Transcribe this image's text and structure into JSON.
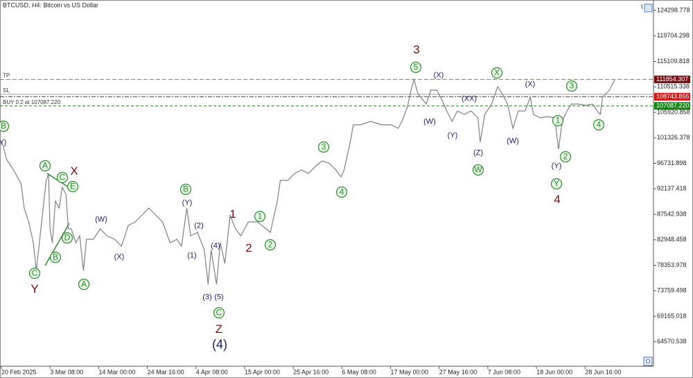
{
  "chart_data": {
    "type": "line",
    "title": "BTCUSD, H4:  Bitcoin vs US Dollar",
    "color": "#7f7f7f",
    "xlim": [
      0,
      858
    ],
    "ylim": [
      60163,
      125799
    ],
    "xticks": [
      {
        "value": 0,
        "label": "20 Feb 2025"
      },
      {
        "value": 64,
        "label": "3 Mar 08:00"
      },
      {
        "value": 128,
        "label": "14 Mar 00:00"
      },
      {
        "value": 192,
        "label": "24 Mar 16:00"
      },
      {
        "value": 256,
        "label": "4 Apr 08:00"
      },
      {
        "value": 320,
        "label": "15 Apr 00:00"
      },
      {
        "value": 384,
        "label": "25 Apr 16:00"
      },
      {
        "value": 448,
        "label": "6 May 08:00"
      },
      {
        "value": 512,
        "label": "17 May 00:00"
      },
      {
        "value": 576,
        "label": "27 May 16:00"
      },
      {
        "value": 640,
        "label": "7 Jun 08:00"
      },
      {
        "value": 704,
        "label": "18 Jun 00:00"
      },
      {
        "value": 768,
        "label": "28 Jun 16:00"
      }
    ],
    "yticks": [
      124298.778,
      119704.298,
      115109.818,
      110515.338,
      105920.858,
      101326.378,
      96731.898,
      92137.418,
      87542.938,
      82948.458,
      78353.978,
      73759.498,
      69165.018,
      64570.538
    ],
    "x": [
      1,
      7,
      16,
      26,
      30,
      36,
      42,
      46,
      51,
      55,
      59,
      62,
      64,
      67,
      71,
      76,
      80,
      85,
      88,
      92,
      98,
      103,
      108,
      112,
      121,
      130,
      139,
      149,
      158,
      167,
      176,
      185,
      194,
      203,
      212,
      222,
      231,
      237,
      244,
      249,
      258,
      267,
      272,
      276,
      283,
      288,
      294,
      301,
      308,
      315,
      325,
      337,
      354,
      363,
      367,
      377,
      386,
      395,
      404,
      413,
      422,
      431,
      440,
      447,
      451,
      459,
      463,
      472,
      486,
      500,
      513,
      522,
      527,
      534,
      539,
      543,
      548,
      559,
      565,
      573,
      580,
      586,
      593,
      600,
      609,
      618,
      627,
      630,
      636,
      645,
      653,
      659,
      666,
      673,
      680,
      689,
      696,
      700,
      709,
      718,
      728,
      733,
      738,
      744,
      750,
      759,
      769,
      778,
      784,
      788,
      791,
      800,
      807
    ],
    "values": [
      100545,
      97419,
      95544,
      93044,
      88668,
      86168,
      82417,
      77416,
      83667,
      88668,
      93669,
      94919,
      84917,
      82417,
      89918,
      88668,
      92419,
      91168,
      84917,
      84917,
      82417,
      83667,
      77416,
      83042,
      83042,
      84917,
      83667,
      83042,
      81792,
      85542,
      86168,
      87418,
      88668,
      87418,
      86168,
      82417,
      83042,
      81792,
      88668,
      83667,
      84292,
      81167,
      74916,
      81167,
      74916,
      82417,
      78666,
      87418,
      84917,
      83667,
      86168,
      86168,
      84292,
      89918,
      93669,
      93669,
      94919,
      95544,
      94919,
      96169,
      97169,
      96794,
      95544,
      94294,
      95544,
      100545,
      103670,
      103670,
      104296,
      103670,
      103670,
      103045,
      104296,
      106796,
      109921,
      111797,
      109296,
      107421,
      109921,
      109921,
      108046,
      106171,
      104296,
      106171,
      105546,
      106171,
      104921,
      100545,
      105546,
      107421,
      110547,
      109296,
      107421,
      103045,
      106171,
      106171,
      108671,
      105546,
      104921,
      105171,
      104921,
      99295,
      104296,
      106171,
      107421,
      107421,
      107171,
      107421,
      106171,
      105546,
      108671,
      109921,
      111797
    ],
    "levels": [
      {
        "label": "TP",
        "value": 111854.307,
        "color": "#8b8b7a",
        "box": "#7a1010",
        "dash": "6 3"
      },
      {
        "label": "SL",
        "value": 109172,
        "color": "#b0b0b0",
        "dash": "none"
      },
      {
        "value": 108743.855,
        "color": "#c03030",
        "box": "#d01818",
        "dash": "6 2 2 2"
      },
      {
        "label": "BUY 0.2 at 107087.220",
        "value": 107087.22,
        "value_label": "107087.220",
        "color": "#2e8b2e",
        "box": "#108a10",
        "dash": "4 3"
      }
    ],
    "annotations": [
      {
        "text": "B",
        "style": "circle"
      },
      {
        "text": "(Y)",
        "style": "paren"
      },
      {
        "text": "A",
        "style": "circle"
      },
      {
        "text": "C",
        "style": "circle"
      },
      {
        "text": "E",
        "style": "circle"
      },
      {
        "text": "X",
        "style": "red"
      },
      {
        "text": "D",
        "style": "circle"
      },
      {
        "text": "B",
        "style": "circle"
      },
      {
        "text": "C",
        "style": "circle"
      },
      {
        "text": "Y",
        "style": "red"
      },
      {
        "text": "A",
        "style": "circle"
      },
      {
        "text": "(W)",
        "style": "paren"
      },
      {
        "text": "(X)",
        "style": "paren"
      },
      {
        "text": "B",
        "style": "circle"
      },
      {
        "text": "(Y)",
        "style": "paren"
      },
      {
        "text": "(2)",
        "style": "paren"
      },
      {
        "text": "(1)",
        "style": "paren"
      },
      {
        "text": "(4)",
        "style": "paren"
      },
      {
        "text": "(3)",
        "style": "paren"
      },
      {
        "text": "(5)",
        "style": "paren"
      },
      {
        "text": "C",
        "style": "circle"
      },
      {
        "text": "Z",
        "style": "red"
      },
      {
        "text": "(4)",
        "style": "big"
      },
      {
        "text": "1",
        "style": "red"
      },
      {
        "text": "2",
        "style": "red"
      },
      {
        "text": "1",
        "style": "circle"
      },
      {
        "text": "2",
        "style": "circle"
      },
      {
        "text": "3",
        "style": "circle"
      },
      {
        "text": "4",
        "style": "circle"
      },
      {
        "text": "3",
        "style": "red"
      },
      {
        "text": "5",
        "style": "circle"
      },
      {
        "text": "(X)",
        "style": "paren"
      },
      {
        "text": "(W)",
        "style": "paren"
      },
      {
        "text": "(XX)",
        "style": "paren"
      },
      {
        "text": "(Y)",
        "style": "paren"
      },
      {
        "text": "(Z)",
        "style": "paren"
      },
      {
        "text": "W",
        "style": "circle"
      },
      {
        "text": "X",
        "style": "circle"
      },
      {
        "text": "(X)",
        "style": "paren"
      },
      {
        "text": "(W)",
        "style": "paren"
      },
      {
        "text": "3",
        "style": "circle"
      },
      {
        "text": "1",
        "style": "circle"
      },
      {
        "text": "4",
        "style": "circle"
      },
      {
        "text": "2",
        "style": "circle"
      },
      {
        "text": "(Y)",
        "style": "paren"
      },
      {
        "text": "Y",
        "style": "circle"
      },
      {
        "text": "4",
        "style": "red"
      }
    ]
  }
}
